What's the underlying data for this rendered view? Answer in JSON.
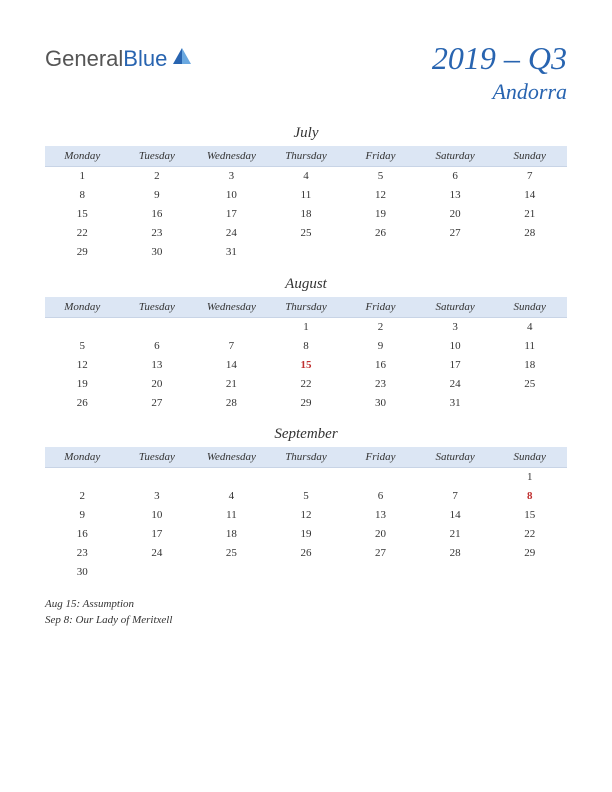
{
  "logo": {
    "part1": "General",
    "part2": "Blue"
  },
  "title": {
    "quarter": "2019 – Q3",
    "country": "Andorra"
  },
  "colors": {
    "accent": "#2864b0",
    "header_bg": "#dce6f4",
    "holiday": "#c03030",
    "text": "#333333",
    "bg": "#ffffff"
  },
  "weekdays": [
    "Monday",
    "Tuesday",
    "Wednesday",
    "Thursday",
    "Friday",
    "Saturday",
    "Sunday"
  ],
  "months": [
    {
      "name": "July",
      "weeks": [
        [
          "1",
          "2",
          "3",
          "4",
          "5",
          "6",
          "7"
        ],
        [
          "8",
          "9",
          "10",
          "11",
          "12",
          "13",
          "14"
        ],
        [
          "15",
          "16",
          "17",
          "18",
          "19",
          "20",
          "21"
        ],
        [
          "22",
          "23",
          "24",
          "25",
          "26",
          "27",
          "28"
        ],
        [
          "29",
          "30",
          "31",
          "",
          "",
          "",
          ""
        ]
      ],
      "holidays": []
    },
    {
      "name": "August",
      "weeks": [
        [
          "",
          "",
          "",
          "1",
          "2",
          "3",
          "4"
        ],
        [
          "5",
          "6",
          "7",
          "8",
          "9",
          "10",
          "11"
        ],
        [
          "12",
          "13",
          "14",
          "15",
          "16",
          "17",
          "18"
        ],
        [
          "19",
          "20",
          "21",
          "22",
          "23",
          "24",
          "25"
        ],
        [
          "26",
          "27",
          "28",
          "29",
          "30",
          "31",
          ""
        ]
      ],
      "holidays": [
        "15"
      ]
    },
    {
      "name": "September",
      "weeks": [
        [
          "",
          "",
          "",
          "",
          "",
          "",
          "1"
        ],
        [
          "2",
          "3",
          "4",
          "5",
          "6",
          "7",
          "8"
        ],
        [
          "9",
          "10",
          "11",
          "12",
          "13",
          "14",
          "15"
        ],
        [
          "16",
          "17",
          "18",
          "19",
          "20",
          "21",
          "22"
        ],
        [
          "23",
          "24",
          "25",
          "26",
          "27",
          "28",
          "29"
        ],
        [
          "30",
          "",
          "",
          "",
          "",
          "",
          ""
        ]
      ],
      "holidays": [
        "8"
      ]
    }
  ],
  "notes": [
    "Aug 15: Assumption",
    "Sep 8: Our Lady of Meritxell"
  ]
}
